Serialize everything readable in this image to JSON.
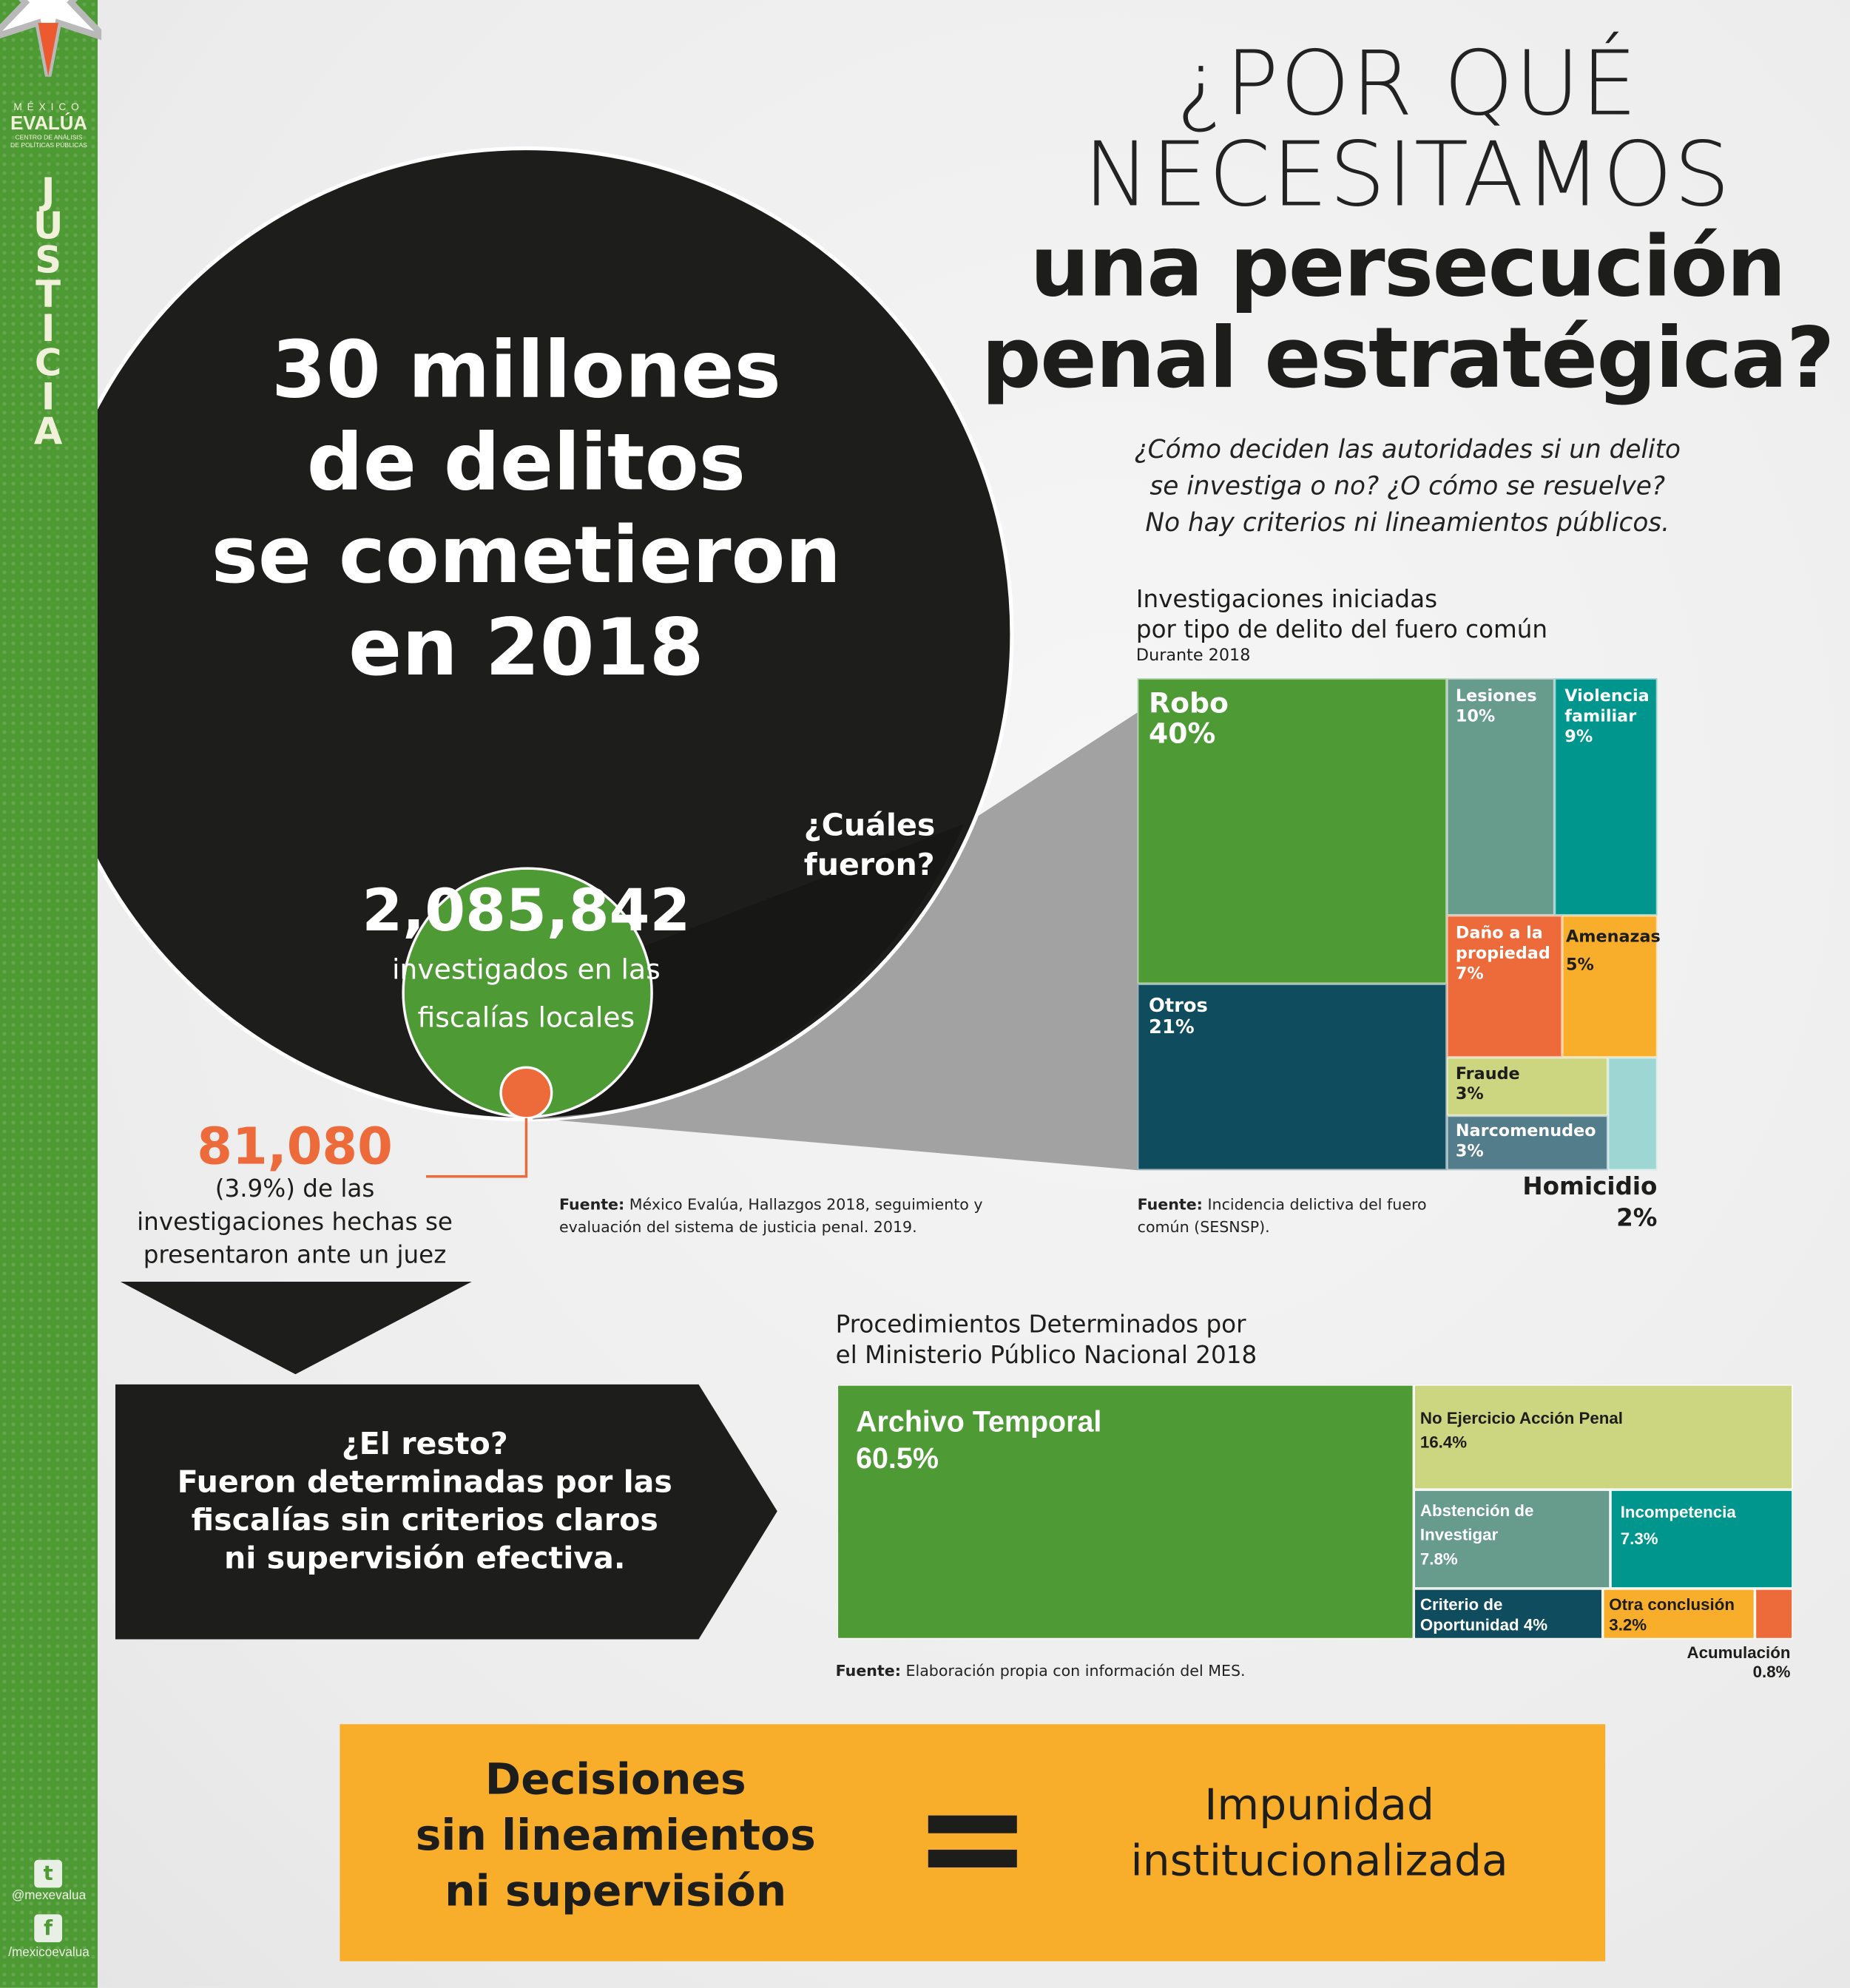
{
  "sidebar": {
    "logo": {
      "line1": "MÉXICO",
      "line2": "EVALÚA",
      "line3": "CENTRO DE ANÁLISIS",
      "line4": "DE POLÍTICAS PÚBLICAS"
    },
    "section_letters": [
      "J",
      "U",
      "S",
      "T",
      "I",
      "C",
      "I",
      "A"
    ],
    "twitter_icon": "twitter-icon",
    "twitter_handle": "@mexevalua",
    "facebook_icon": "facebook-icon",
    "facebook_handle": "/mexicoevalua"
  },
  "header": {
    "title_line1": "¿POR QUÉ",
    "title_line2": "NECESITAMOS",
    "title_line3": "una persecución",
    "title_line4": "penal estratégica?",
    "subtitle": [
      "¿Cómo deciden las autoridades si un delito",
      "se investiga o no? ¿O cómo se resuelve?",
      "No hay criterios ni lineamientos públicos."
    ]
  },
  "circle": {
    "lines": [
      "30 millones",
      "de delitos",
      "se cometieron",
      "en 2018"
    ],
    "question": [
      "¿Cuáles",
      "fueron?"
    ],
    "investigated_number": "2,085,842",
    "investigated_text": [
      "investigados en las",
      "fiscalías locales"
    ]
  },
  "judge": {
    "number": "81,080",
    "text": [
      "(3.9%) de las",
      "investigaciones hechas se",
      "presentaron ante un juez"
    ]
  },
  "rest_box": {
    "lines": [
      "¿El resto?",
      "Fueron determinadas por las",
      "fiscalías sin criterios claros",
      "ni supervisión efectiva."
    ]
  },
  "source1": {
    "label": "Fuente:",
    "text": "México Evalúa, Hallazgos 2018, seguimiento y",
    "text2": "evaluación del sistema de justicia penal. 2019."
  },
  "chart_data": [
    {
      "type": "treemap",
      "title": [
        "Investigaciones iniciadas",
        "por tipo de delito del fuero común"
      ],
      "subtitle": "Durante 2018",
      "items": [
        {
          "label": "Robo",
          "value": "40%",
          "pct": 40,
          "color": "#4e9a35"
        },
        {
          "label": "Otros",
          "value": "21%",
          "pct": 21,
          "color": "#0f4c5e"
        },
        {
          "label": "Lesiones",
          "value": "10%",
          "pct": 10,
          "color": "#679b8c"
        },
        {
          "label": "Violencia familiar",
          "value": "9%",
          "pct": 9,
          "color": "#00968e"
        },
        {
          "label": "Daño a la propiedad",
          "value": "7%",
          "pct": 7,
          "color": "#ed6b3a"
        },
        {
          "label": "Amenazas",
          "value": "5%",
          "pct": 5,
          "color": "#f8ae2a"
        },
        {
          "label": "Fraude",
          "value": "3%",
          "pct": 3,
          "color": "#ccd57f"
        },
        {
          "label": "Narcomenudeo",
          "value": "3%",
          "pct": 3,
          "color": "#547d8c"
        },
        {
          "label": "Homicidio",
          "value": "2%",
          "pct": 2,
          "color": "#9dd6d3"
        }
      ],
      "source_label": "Fuente:",
      "source": "Incidencia delictiva del fuero",
      "source2": "común (SESNSP)."
    },
    {
      "type": "treemap",
      "title": [
        "Procedimientos Determinados por",
        "el Ministerio Público Nacional 2018"
      ],
      "items": [
        {
          "label": "Archivo Temporal",
          "value": "60.5%",
          "pct": 60.5,
          "color": "#4e9a35"
        },
        {
          "label": "No Ejercicio Acción Penal",
          "value": "16.4%",
          "pct": 16.4,
          "color": "#ccd57f"
        },
        {
          "label": "Abstención de Investigar",
          "value": "7.8%",
          "pct": 7.8,
          "color": "#679b8c"
        },
        {
          "label": "Incompetencia",
          "value": "7.3%",
          "pct": 7.3,
          "color": "#00968e"
        },
        {
          "label": "Criterio de Oportunidad",
          "value": "4%",
          "pct": 4,
          "color": "#0f4c5e"
        },
        {
          "label": "Otra conclusión",
          "value": "3.2%",
          "pct": 3.2,
          "color": "#f8ae2a"
        },
        {
          "label": "Acumulación",
          "value": "0.8%",
          "pct": 0.8,
          "color": "#ed6b3a"
        }
      ],
      "source_label": "Fuente:",
      "source": "Elaboración propia con información del MES."
    }
  ],
  "banner": {
    "left": [
      "Decisiones",
      "sin lineamientos",
      "ni supervisión"
    ],
    "right": [
      "Impunidad",
      "institucionalizada"
    ],
    "equals_icon": "equals-icon",
    "color": "#f8ae2a"
  }
}
